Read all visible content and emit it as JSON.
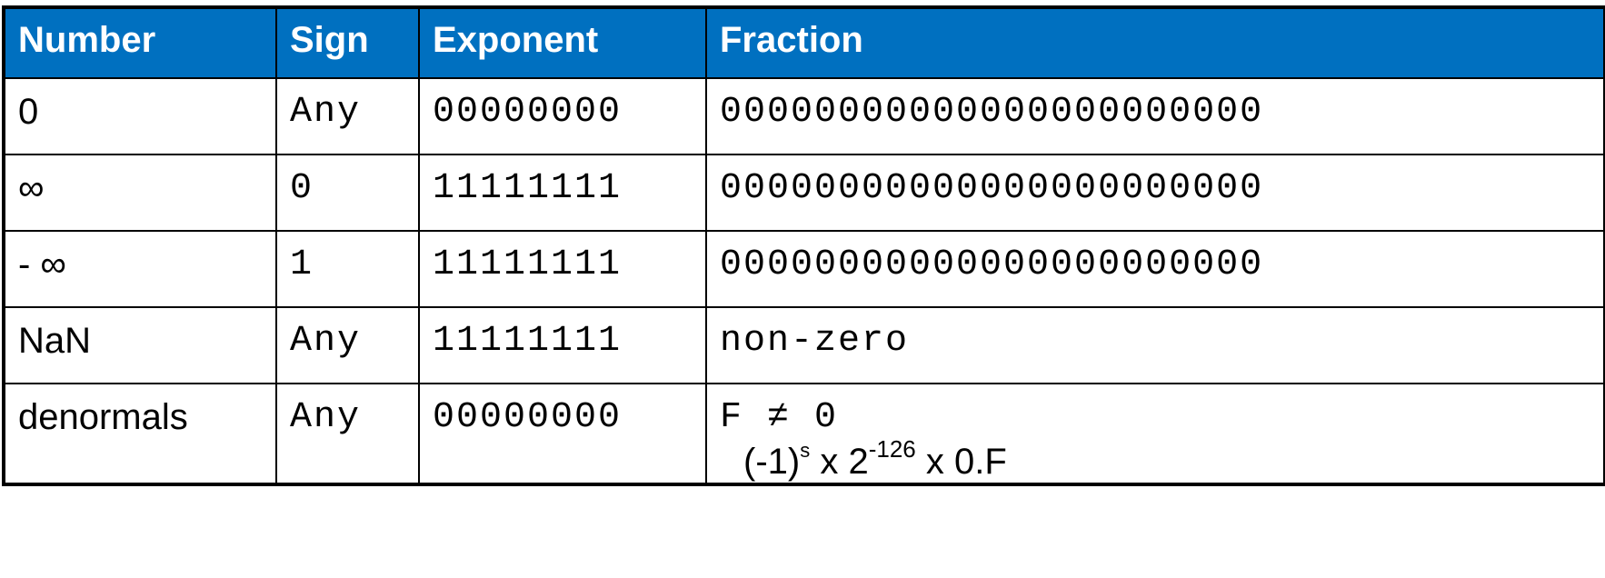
{
  "table": {
    "headers": [
      "Number",
      "Sign",
      "Exponent",
      "Fraction"
    ],
    "rows": [
      {
        "number": "0",
        "sign": "Any",
        "exponent": "00000000",
        "fraction": "00000000000000000000000"
      },
      {
        "number": "∞",
        "sign": "0",
        "exponent": "11111111",
        "fraction": "00000000000000000000000"
      },
      {
        "number": "- ∞",
        "sign": "1",
        "exponent": "11111111",
        "fraction": "00000000000000000000000"
      },
      {
        "number": "NaN",
        "sign": "Any",
        "exponent": "11111111",
        "fraction": "non-zero"
      },
      {
        "number": "denormals",
        "sign": "Any",
        "exponent": "00000000",
        "fraction": "F ≠ 0",
        "formula": {
          "base": "(-1)",
          "sign_exp": "s",
          "mid": " x 2",
          "pow": "-126",
          "tail": " x 0.F"
        }
      }
    ]
  },
  "colors": {
    "header_bg": "#0070c0",
    "header_text": "#ffffff",
    "border": "#000000"
  }
}
